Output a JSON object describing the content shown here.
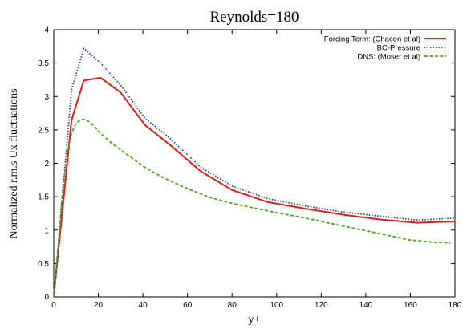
{
  "chart_data": {
    "type": "line",
    "title": "Reynolds=180",
    "xlabel": "y+",
    "ylabel": "Normalized r.m.s Ux fluctuations",
    "xlim": [
      0,
      180
    ],
    "ylim": [
      0,
      4
    ],
    "xticks": [
      0,
      20,
      40,
      60,
      80,
      100,
      120,
      140,
      160,
      180
    ],
    "yticks": [
      0,
      0.5,
      1,
      1.5,
      2,
      2.5,
      3,
      3.5,
      4
    ],
    "grid": false,
    "legend_position": "top-right",
    "series": [
      {
        "name": "Forcing Term: (Chacon et al)",
        "color": "#e41a1c",
        "style": "solid",
        "x": [
          0,
          8,
          13.5,
          21,
          30,
          41,
          52,
          66,
          80,
          96,
          113,
          130,
          146,
          163,
          180
        ],
        "y": [
          0,
          2.65,
          3.24,
          3.28,
          3.06,
          2.57,
          2.28,
          1.88,
          1.6,
          1.42,
          1.32,
          1.23,
          1.16,
          1.11,
          1.13
        ]
      },
      {
        "name": "BC-Pressure",
        "color": "#1f3fa0",
        "style": "dotted",
        "x": [
          0,
          8,
          13.5,
          21,
          30,
          41,
          52,
          66,
          80,
          96,
          113,
          130,
          146,
          163,
          180
        ],
        "y": [
          0,
          3.1,
          3.72,
          3.5,
          3.17,
          2.67,
          2.38,
          1.94,
          1.66,
          1.47,
          1.36,
          1.27,
          1.21,
          1.15,
          1.18
        ]
      },
      {
        "name": "DNS: (Moser et al)",
        "color": "#4aa51b",
        "style": "dashed",
        "x": [
          0,
          2,
          4,
          6,
          8,
          10,
          12,
          14,
          16,
          18,
          20,
          25,
          30,
          35,
          40,
          45,
          50,
          60,
          70,
          80,
          90,
          100,
          110,
          120,
          130,
          140,
          150,
          160,
          170,
          178
        ],
        "y": [
          0,
          0.75,
          1.6,
          2.15,
          2.45,
          2.6,
          2.65,
          2.66,
          2.62,
          2.56,
          2.48,
          2.33,
          2.2,
          2.08,
          1.96,
          1.86,
          1.77,
          1.62,
          1.49,
          1.4,
          1.33,
          1.26,
          1.2,
          1.13,
          1.06,
          0.99,
          0.92,
          0.85,
          0.82,
          0.81
        ]
      }
    ]
  }
}
